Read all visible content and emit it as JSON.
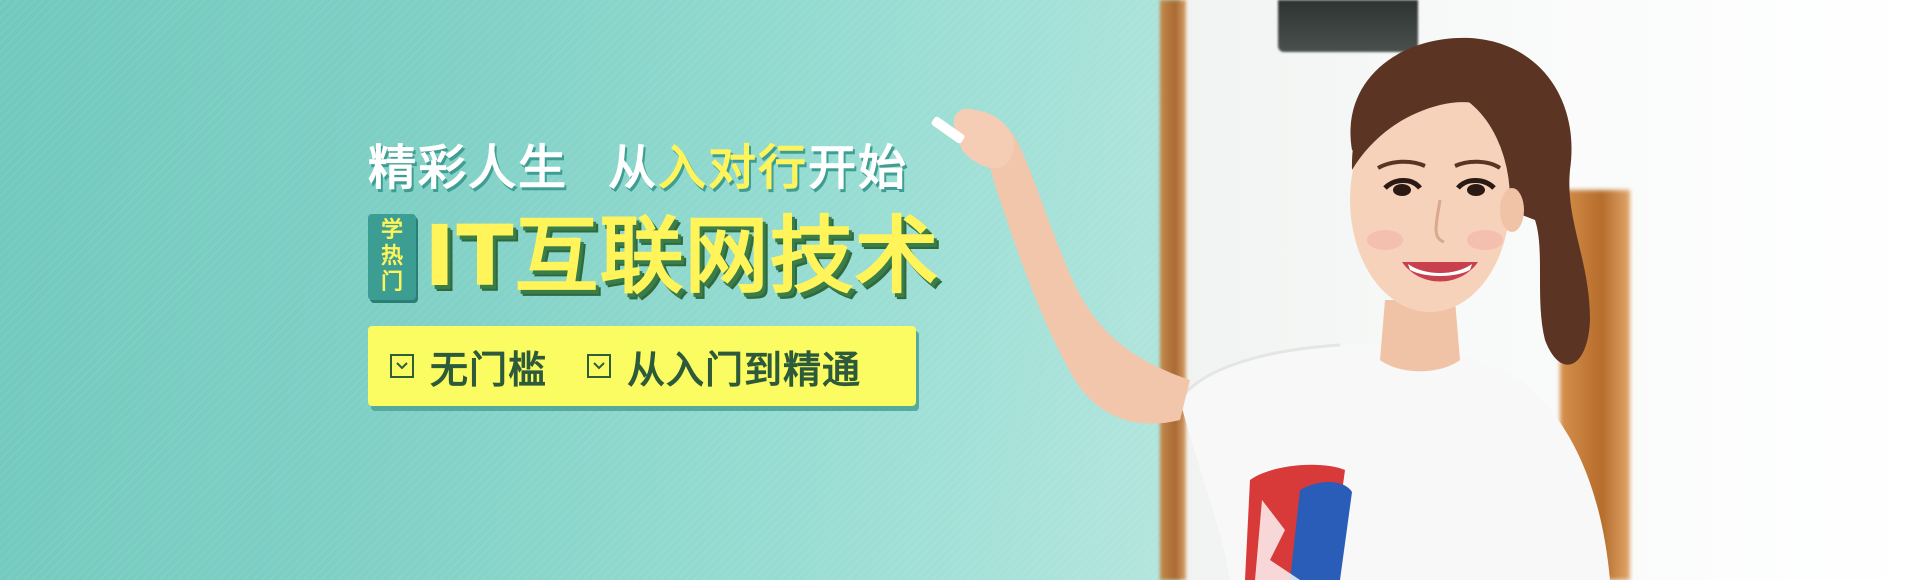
{
  "headline": {
    "part1": "精彩人生",
    "part2_pre": "从",
    "part2_highlight": "入对行",
    "part2_post": "开始"
  },
  "badge": {
    "chars": [
      "学",
      "热",
      "门"
    ]
  },
  "main_title": "IT互联网技术",
  "features": [
    {
      "label": "无门槛",
      "icon": "checkbox-icon"
    },
    {
      "label": "从入门到精通",
      "icon": "checkbox-icon"
    }
  ],
  "colors": {
    "teal_background": "#7fd0c5",
    "highlight_yellow": "#fff45a",
    "feature_bar": "#fbfb62",
    "dark_green_text": "#2d5a3a"
  }
}
